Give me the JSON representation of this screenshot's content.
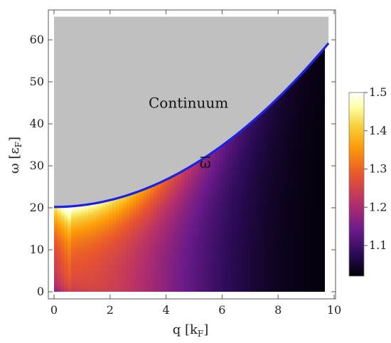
{
  "chart_data": {
    "type": "heatmap",
    "title": "",
    "xlabel": {
      "main": "q [k",
      "sub": "F",
      "close": "]"
    },
    "ylabel": {
      "main": "ω [ε",
      "sub": "F",
      "close": "]"
    },
    "xlim": [
      0,
      10
    ],
    "ylim": [
      -2,
      66
    ],
    "xticks": [
      0,
      2,
      4,
      6,
      8,
      10
    ],
    "yticks": [
      0,
      10,
      20,
      30,
      40,
      50,
      60
    ],
    "annotations": [
      {
        "text": "Continuum",
        "x": 4.8,
        "y": 43.8
      },
      {
        "text": "ω",
        "overline": true,
        "x": 5.4,
        "y": 29.5
      }
    ],
    "boundary_curve": {
      "name": "ω̄",
      "color": "#1a22e6",
      "function": "omega = 20 + 0.2 + 0.406*q^2",
      "x": [
        0,
        1,
        2,
        3,
        4,
        5,
        6,
        7,
        8,
        9,
        9.8
      ],
      "y": [
        20.2,
        20.6,
        21.8,
        23.9,
        26.7,
        30.3,
        34.8,
        40.1,
        46.2,
        53.1,
        59.3
      ]
    },
    "continuum_region": {
      "label": "Continuum",
      "color": "#c0c0c0"
    },
    "colorbar": {
      "min": 1.02,
      "max": 1.5,
      "ticks": [
        1.1,
        1.2,
        1.3,
        1.4,
        1.5
      ],
      "tick_labels": [
        "1.1",
        "1.2",
        "1.3",
        "1.4",
        "1.5"
      ],
      "colormap": [
        "#000004",
        "#2b0b57",
        "#6a1b8a",
        "#b52f6b",
        "#e8552e",
        "#fb9b06",
        "#f7d13d",
        "#fcffa4",
        "#ffffff"
      ]
    }
  }
}
